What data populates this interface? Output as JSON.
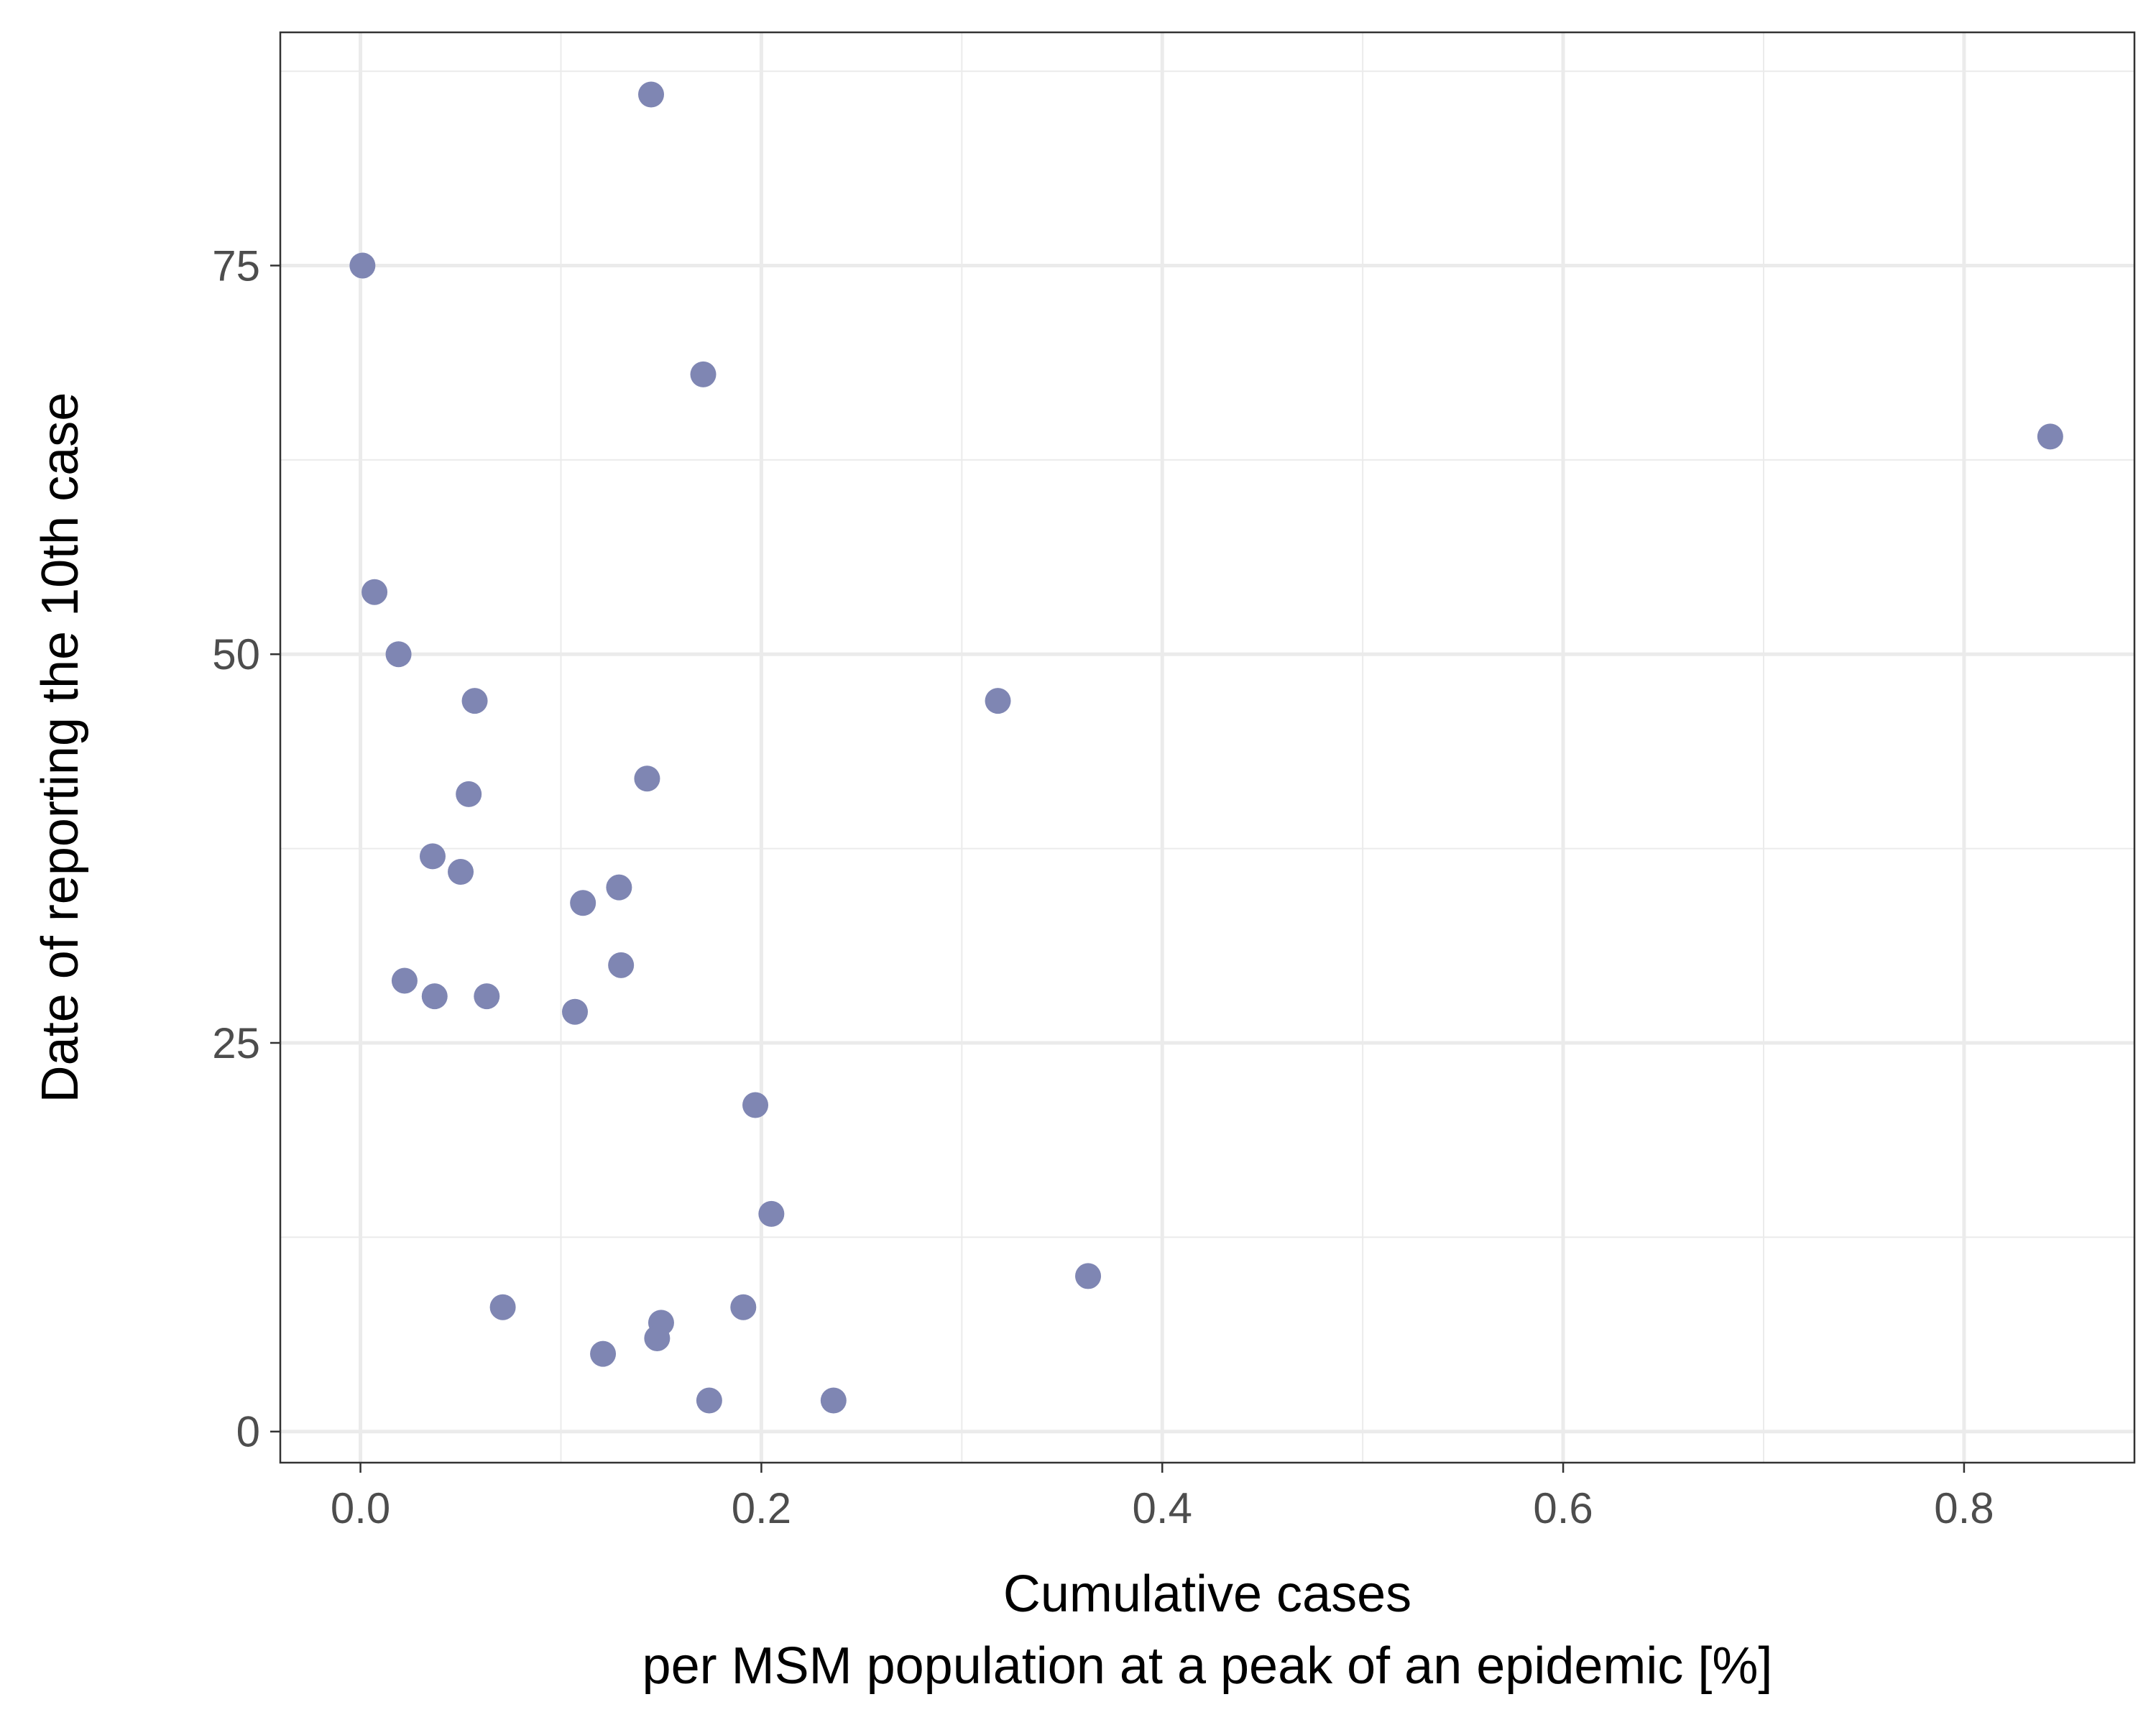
{
  "chart_data": {
    "type": "scatter",
    "title": "",
    "xlabel_lines": [
      "Cumulative cases",
      "per MSM population at a peak of an epidemic [%]"
    ],
    "ylabel": "Date of reporting the 10th case",
    "xlim": [
      -0.04,
      0.885
    ],
    "ylim": [
      -2,
      90
    ],
    "x_ticks": [
      0.0,
      0.2,
      0.4,
      0.6,
      0.8
    ],
    "x_tick_labels": [
      "0.0",
      "0.2",
      "0.4",
      "0.6",
      "0.8"
    ],
    "x_minor_ticks": [
      0.1,
      0.3,
      0.5,
      0.7
    ],
    "y_ticks": [
      0,
      25,
      50,
      75
    ],
    "y_tick_labels": [
      "0",
      "25",
      "50",
      "75"
    ],
    "y_minor_ticks": [
      12.5,
      37.5,
      62.5,
      87.5
    ],
    "grid": true,
    "legend": "none",
    "point_color": "#7f86b3",
    "points": [
      {
        "x": 0.145,
        "y": 86
      },
      {
        "x": 0.001,
        "y": 75
      },
      {
        "x": 0.171,
        "y": 68
      },
      {
        "x": 0.843,
        "y": 64
      },
      {
        "x": 0.007,
        "y": 54
      },
      {
        "x": 0.019,
        "y": 50
      },
      {
        "x": 0.057,
        "y": 47
      },
      {
        "x": 0.318,
        "y": 47
      },
      {
        "x": 0.143,
        "y": 42
      },
      {
        "x": 0.054,
        "y": 41
      },
      {
        "x": 0.036,
        "y": 37
      },
      {
        "x": 0.05,
        "y": 36
      },
      {
        "x": 0.129,
        "y": 35
      },
      {
        "x": 0.111,
        "y": 34
      },
      {
        "x": 0.13,
        "y": 30
      },
      {
        "x": 0.022,
        "y": 29
      },
      {
        "x": 0.037,
        "y": 28
      },
      {
        "x": 0.063,
        "y": 28
      },
      {
        "x": 0.107,
        "y": 27
      },
      {
        "x": 0.197,
        "y": 21
      },
      {
        "x": 0.205,
        "y": 14
      },
      {
        "x": 0.363,
        "y": 10
      },
      {
        "x": 0.071,
        "y": 8
      },
      {
        "x": 0.191,
        "y": 8
      },
      {
        "x": 0.15,
        "y": 7
      },
      {
        "x": 0.148,
        "y": 6
      },
      {
        "x": 0.121,
        "y": 5
      },
      {
        "x": 0.174,
        "y": 2
      },
      {
        "x": 0.236,
        "y": 2
      }
    ]
  }
}
